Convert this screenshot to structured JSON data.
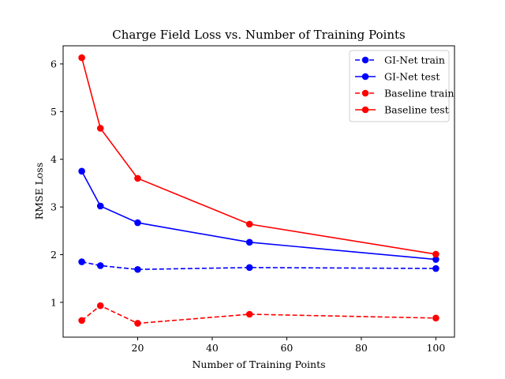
{
  "chart_data": {
    "type": "line",
    "title": "Charge Field Loss vs. Number of Training Points",
    "xlabel": "Number of Training Points",
    "ylabel": "RMSE Loss",
    "xlim": [
      0,
      105
    ],
    "ylim": [
      0.27,
      6.38
    ],
    "xticks": [
      20,
      40,
      60,
      80,
      100
    ],
    "yticks": [
      1,
      2,
      3,
      4,
      5,
      6
    ],
    "grid": false,
    "legend_position": "top-right",
    "x": [
      5,
      10,
      20,
      50,
      100
    ],
    "series": [
      {
        "name": "GI-Net train",
        "color": "#0000ff",
        "dashed": true,
        "values": [
          1.85,
          1.77,
          1.69,
          1.73,
          1.71
        ]
      },
      {
        "name": "GI-Net test",
        "color": "#0000ff",
        "dashed": false,
        "values": [
          3.75,
          3.02,
          2.67,
          2.26,
          1.9
        ]
      },
      {
        "name": "Baseline train",
        "color": "#ff0000",
        "dashed": true,
        "values": [
          0.62,
          0.93,
          0.56,
          0.75,
          0.67
        ]
      },
      {
        "name": "Baseline test",
        "color": "#ff0000",
        "dashed": false,
        "values": [
          6.13,
          4.65,
          3.6,
          2.64,
          2.01
        ]
      }
    ]
  }
}
